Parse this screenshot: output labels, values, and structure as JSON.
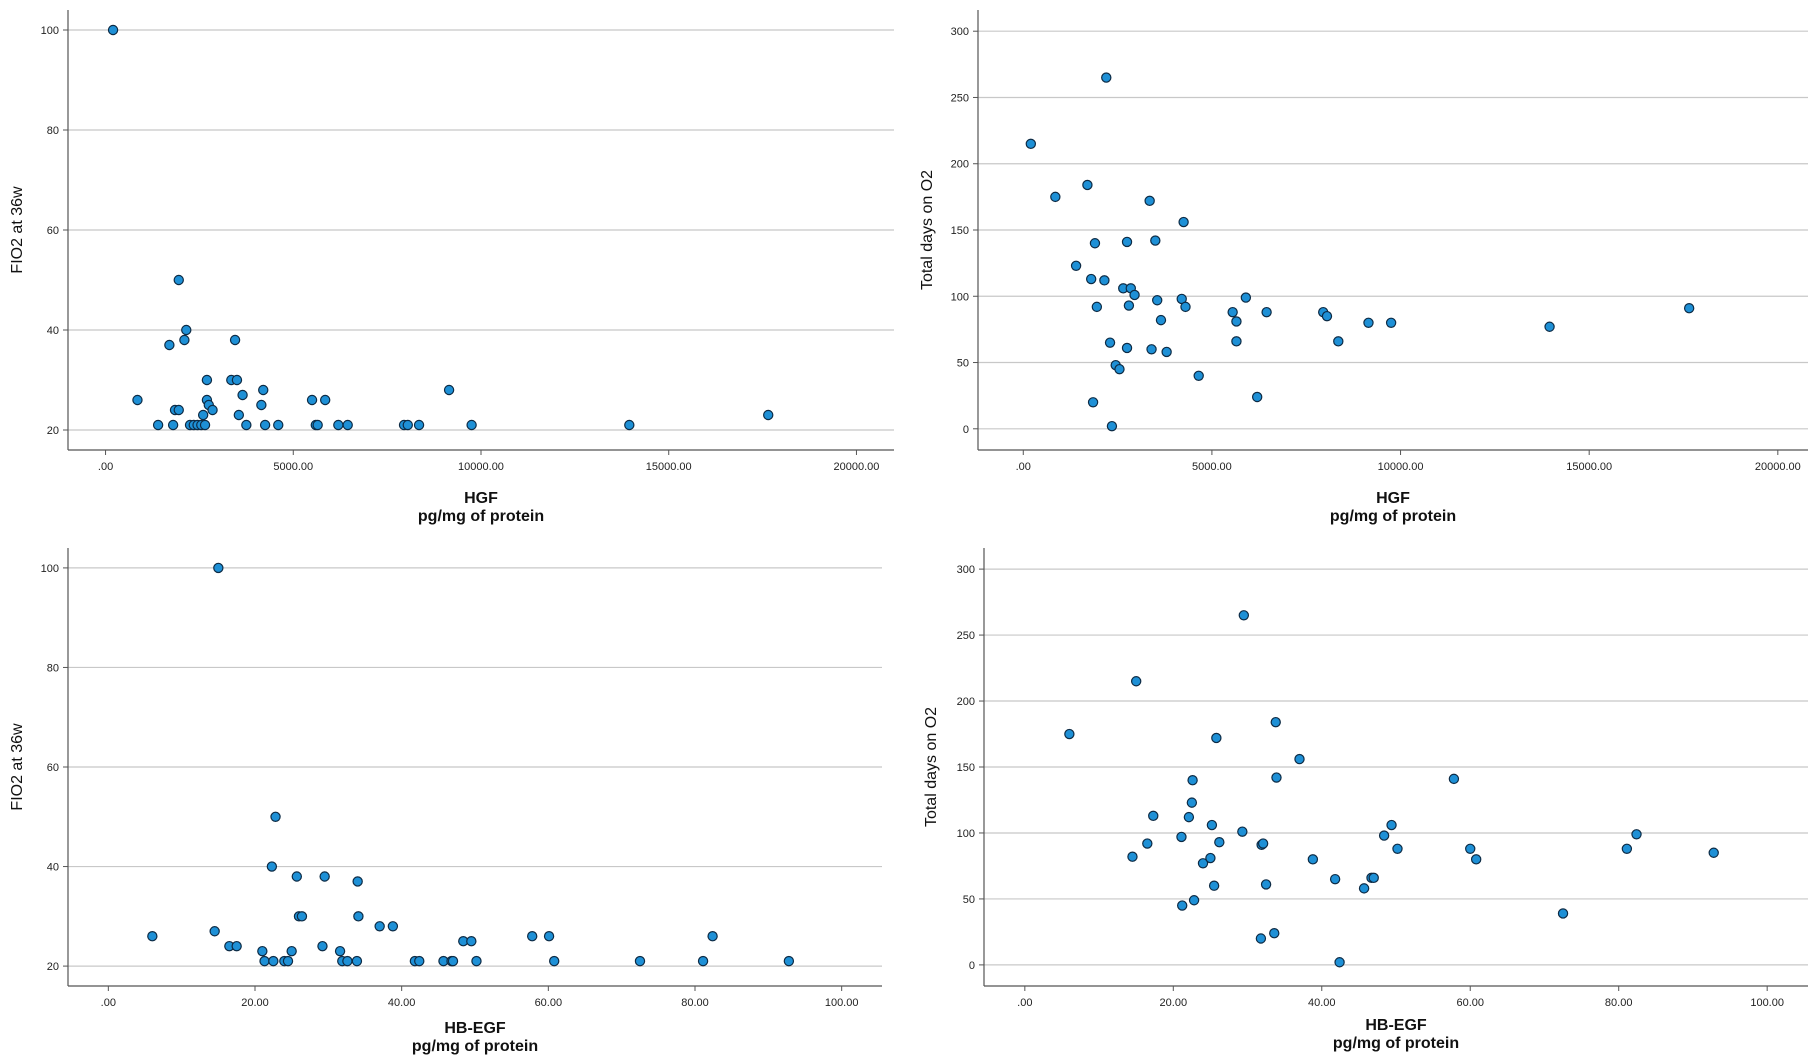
{
  "colors": {
    "marker_fill": "#1E90D6",
    "marker_stroke": "#0d2b45",
    "grid": "#c8c8c8",
    "axis": "#555555"
  },
  "chart_data": [
    {
      "type": "scatter",
      "xlabel": "HGF",
      "xunit": "pg/mg of protein",
      "ylabel": "FIO2 at 36w",
      "xlim": [
        -1000,
        21000
      ],
      "ylim": [
        16,
        104
      ],
      "xticks": [
        ".00",
        "5000.00",
        "10000.00",
        "15000.00",
        "20000.00"
      ],
      "yticks": [
        "20",
        "40",
        "60",
        "80",
        "100"
      ],
      "grid": "horizontal",
      "points": [
        [
          200,
          100
        ],
        [
          850,
          26
        ],
        [
          1400,
          21
        ],
        [
          1700,
          37
        ],
        [
          1800,
          21
        ],
        [
          1850,
          24
        ],
        [
          1950,
          24
        ],
        [
          1950,
          50
        ],
        [
          2100,
          38
        ],
        [
          2150,
          40
        ],
        [
          2250,
          21
        ],
        [
          2350,
          21
        ],
        [
          2450,
          21
        ],
        [
          2550,
          21
        ],
        [
          2600,
          23
        ],
        [
          2650,
          21
        ],
        [
          2700,
          26
        ],
        [
          2700,
          30
        ],
        [
          2750,
          25
        ],
        [
          2850,
          24
        ],
        [
          3350,
          30
        ],
        [
          3450,
          38
        ],
        [
          3500,
          30
        ],
        [
          3550,
          23
        ],
        [
          3650,
          27
        ],
        [
          3750,
          21
        ],
        [
          4150,
          25
        ],
        [
          4200,
          28
        ],
        [
          4250,
          21
        ],
        [
          4600,
          21
        ],
        [
          5500,
          26
        ],
        [
          5600,
          21
        ],
        [
          5650,
          21
        ],
        [
          5850,
          26
        ],
        [
          6200,
          21
        ],
        [
          6450,
          21
        ],
        [
          7950,
          21
        ],
        [
          8050,
          21
        ],
        [
          8350,
          21
        ],
        [
          9150,
          28
        ],
        [
          9750,
          21
        ],
        [
          13950,
          21
        ],
        [
          17650,
          23
        ]
      ]
    },
    {
      "type": "scatter",
      "xlabel": "HGF",
      "xunit": "pg/mg of protein",
      "ylabel": "Total days on O2",
      "xlim": [
        -1200,
        20800
      ],
      "ylim": [
        -16,
        316
      ],
      "xticks": [
        ".00",
        "5000.00",
        "10000.00",
        "15000.00",
        "20000.00"
      ],
      "yticks": [
        "0",
        "50",
        "100",
        "150",
        "200",
        "250",
        "300"
      ],
      "grid": "horizontal",
      "points": [
        [
          200,
          215
        ],
        [
          850,
          175
        ],
        [
          1400,
          123
        ],
        [
          1700,
          184
        ],
        [
          1800,
          113
        ],
        [
          1850,
          20
        ],
        [
          1900,
          140
        ],
        [
          1950,
          92
        ],
        [
          2150,
          112
        ],
        [
          2200,
          265
        ],
        [
          2300,
          65
        ],
        [
          2350,
          2
        ],
        [
          2450,
          48
        ],
        [
          2550,
          45
        ],
        [
          2650,
          106
        ],
        [
          2750,
          61
        ],
        [
          2750,
          141
        ],
        [
          2800,
          93
        ],
        [
          2850,
          106
        ],
        [
          2950,
          101
        ],
        [
          3350,
          172
        ],
        [
          3400,
          60
        ],
        [
          3500,
          142
        ],
        [
          3550,
          97
        ],
        [
          3650,
          82
        ],
        [
          3800,
          58
        ],
        [
          4200,
          98
        ],
        [
          4250,
          156
        ],
        [
          4300,
          92
        ],
        [
          4650,
          40
        ],
        [
          5550,
          88
        ],
        [
          5650,
          81
        ],
        [
          5650,
          66
        ],
        [
          5900,
          99
        ],
        [
          6200,
          24
        ],
        [
          6450,
          88
        ],
        [
          7950,
          88
        ],
        [
          8050,
          85
        ],
        [
          8350,
          66
        ],
        [
          9150,
          80
        ],
        [
          9750,
          80
        ],
        [
          13950,
          77
        ],
        [
          17650,
          91
        ]
      ]
    },
    {
      "type": "scatter",
      "xlabel": "HB-EGF",
      "xunit": "pg/mg of protein",
      "ylabel": "FIO2 at 36w",
      "xlim": [
        -5.5,
        105.5
      ],
      "ylim": [
        16,
        104
      ],
      "xticks": [
        ".00",
        "20.00",
        "40.00",
        "60.00",
        "80.00",
        "100.00"
      ],
      "yticks": [
        "20",
        "40",
        "60",
        "80",
        "100"
      ],
      "grid": "horizontal",
      "points": [
        [
          6,
          26
        ],
        [
          14.5,
          27
        ],
        [
          15,
          100
        ],
        [
          16.5,
          24
        ],
        [
          17.5,
          24
        ],
        [
          21,
          23
        ],
        [
          21.3,
          21
        ],
        [
          22.3,
          40
        ],
        [
          22.5,
          21
        ],
        [
          22.8,
          50
        ],
        [
          24,
          21
        ],
        [
          24.5,
          21
        ],
        [
          25,
          23
        ],
        [
          25.7,
          38
        ],
        [
          26,
          30
        ],
        [
          26.4,
          30
        ],
        [
          29.2,
          24
        ],
        [
          29.5,
          38
        ],
        [
          31.6,
          23
        ],
        [
          31.9,
          21
        ],
        [
          32.6,
          21
        ],
        [
          33.9,
          21
        ],
        [
          34,
          37
        ],
        [
          34.1,
          30
        ],
        [
          37,
          28
        ],
        [
          38.8,
          28
        ],
        [
          41.8,
          21
        ],
        [
          42.4,
          21
        ],
        [
          45.7,
          21
        ],
        [
          46.8,
          21
        ],
        [
          47,
          21
        ],
        [
          48.4,
          25
        ],
        [
          49.5,
          25
        ],
        [
          50.2,
          21
        ],
        [
          57.8,
          26
        ],
        [
          60.1,
          26
        ],
        [
          60.8,
          21
        ],
        [
          72.5,
          21
        ],
        [
          81.1,
          21
        ],
        [
          82.4,
          26
        ],
        [
          92.8,
          21
        ]
      ]
    },
    {
      "type": "scatter",
      "xlabel": "HB-EGF",
      "xunit": "pg/mg of protein",
      "ylabel": "Total days on O2",
      "xlim": [
        -5.5,
        105.5
      ],
      "ylim": [
        -16,
        316
      ],
      "xticks": [
        ".00",
        "20.00",
        "40.00",
        "60.00",
        "80.00",
        "100.00"
      ],
      "yticks": [
        "0",
        "50",
        "100",
        "150",
        "200",
        "250",
        "300"
      ],
      "grid": "horizontal",
      "points": [
        [
          6,
          175
        ],
        [
          14.5,
          82
        ],
        [
          15,
          215
        ],
        [
          16.5,
          92
        ],
        [
          17.3,
          113
        ],
        [
          21.1,
          97
        ],
        [
          21.2,
          45
        ],
        [
          22.1,
          112
        ],
        [
          22.5,
          123
        ],
        [
          22.6,
          140
        ],
        [
          22.8,
          49
        ],
        [
          24,
          77
        ],
        [
          25,
          81
        ],
        [
          25.2,
          106
        ],
        [
          25.5,
          60
        ],
        [
          25.8,
          172
        ],
        [
          26.2,
          93
        ],
        [
          29.3,
          101
        ],
        [
          29.5,
          265
        ],
        [
          31.8,
          20
        ],
        [
          31.9,
          91
        ],
        [
          32.1,
          92
        ],
        [
          32.5,
          61
        ],
        [
          33.6,
          24
        ],
        [
          33.8,
          184
        ],
        [
          33.9,
          142
        ],
        [
          37,
          156
        ],
        [
          38.8,
          80
        ],
        [
          41.8,
          65
        ],
        [
          42.4,
          2
        ],
        [
          45.7,
          58
        ],
        [
          46.7,
          66
        ],
        [
          47,
          66
        ],
        [
          48.4,
          98
        ],
        [
          49.4,
          106
        ],
        [
          50.2,
          88
        ],
        [
          57.8,
          141
        ],
        [
          60,
          88
        ],
        [
          60.8,
          80
        ],
        [
          72.5,
          39
        ],
        [
          81.1,
          88
        ],
        [
          82.4,
          99
        ],
        [
          92.8,
          85
        ]
      ]
    }
  ]
}
